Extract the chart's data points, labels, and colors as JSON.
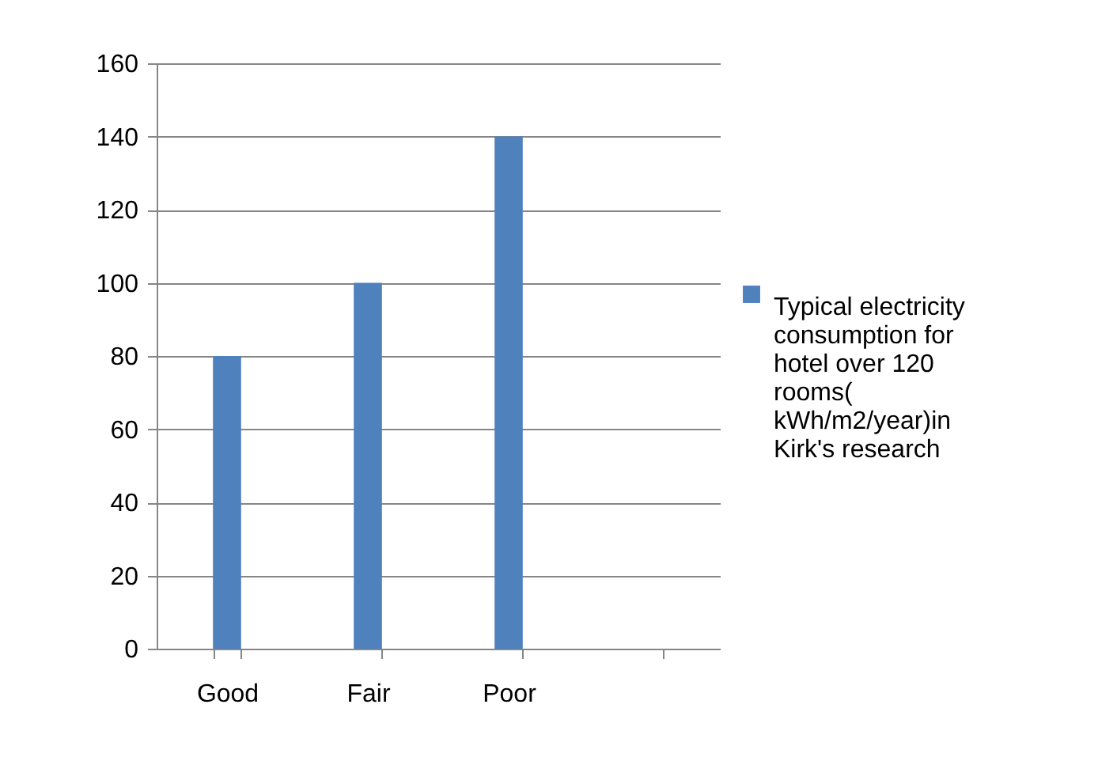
{
  "chart_data": {
    "type": "bar",
    "categories": [
      "Good",
      "Fair",
      "Poor",
      null
    ],
    "series": [
      {
        "name": "Typical electricity consumption for hotel over 120 rooms( kWh/m2/year)in Kirk's research",
        "color": "#4f81bd",
        "values": [
          80,
          100,
          140,
          null
        ]
      }
    ],
    "ylim": [
      0,
      160
    ],
    "yticks": [
      0,
      20,
      40,
      60,
      80,
      100,
      120,
      140,
      160
    ],
    "grid": "y",
    "legend": "right"
  }
}
